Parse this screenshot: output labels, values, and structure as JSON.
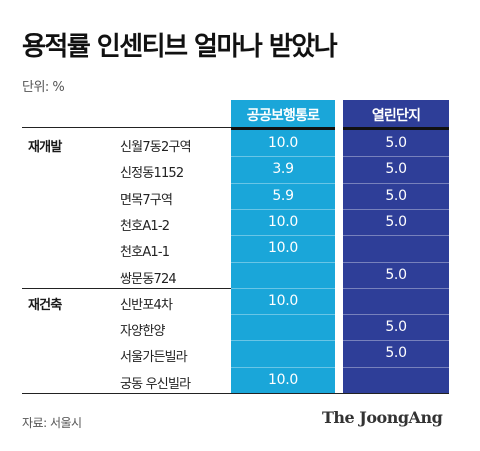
{
  "header": {
    "title": "용적률 인센티브 얼마나 받았나",
    "unit": "단위: %"
  },
  "chart_data": {
    "type": "table",
    "columns": [
      "공공보행통로",
      "열린단지"
    ],
    "groups": [
      {
        "name": "재개발",
        "rows": [
          {
            "label": "신월7동2구역",
            "values": [
              "10.0",
              "5.0"
            ]
          },
          {
            "label": "신정동1152",
            "values": [
              "3.9",
              "5.0"
            ]
          },
          {
            "label": "면목7구역",
            "values": [
              "5.9",
              "5.0"
            ]
          },
          {
            "label": "천호A1-2",
            "values": [
              "10.0",
              "5.0"
            ]
          },
          {
            "label": "천호A1-1",
            "values": [
              "10.0",
              ""
            ]
          },
          {
            "label": "쌍문동724",
            "values": [
              "",
              "5.0"
            ]
          }
        ]
      },
      {
        "name": "재건축",
        "rows": [
          {
            "label": "신반포4차",
            "values": [
              "10.0",
              ""
            ]
          },
          {
            "label": "자양한양",
            "values": [
              "",
              "5.0"
            ]
          },
          {
            "label": "서울가든빌라",
            "values": [
              "",
              "5.0"
            ]
          },
          {
            "label": "궁동 우신빌라",
            "values": [
              "10.0",
              ""
            ]
          }
        ]
      }
    ],
    "colors": {
      "col_a": "#1aa6d9",
      "col_b": "#2e3e98"
    }
  },
  "footer": {
    "source": "자료: 서울시",
    "logo_text": "The JoongAng"
  }
}
